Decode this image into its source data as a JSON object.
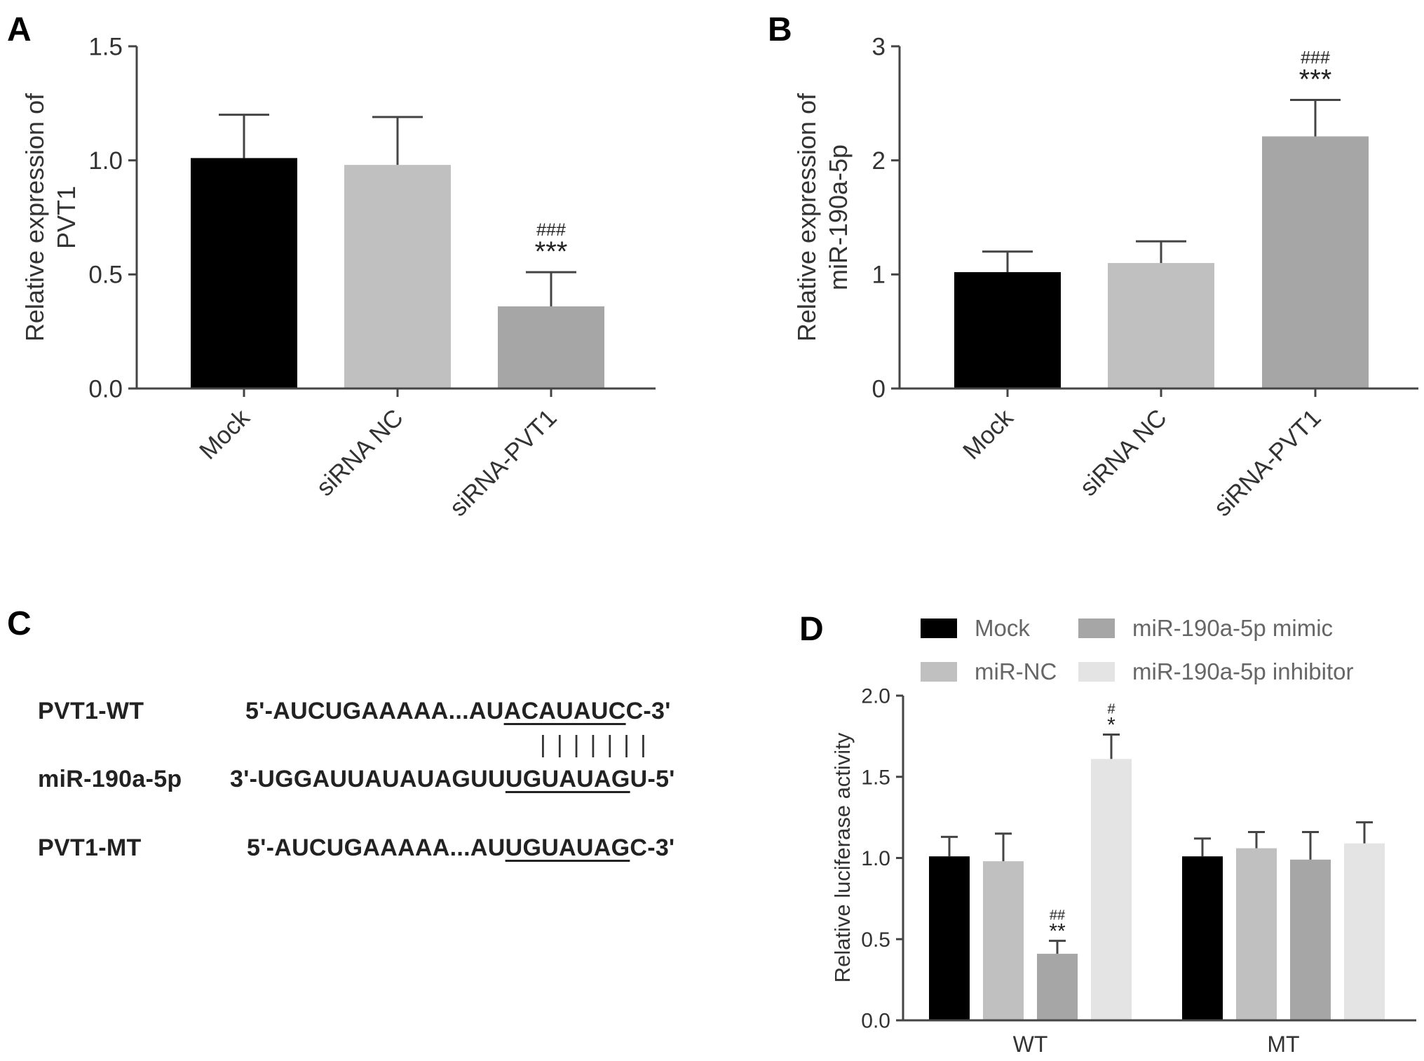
{
  "panel_labels": {
    "a": "A",
    "b": "B",
    "c": "C",
    "d": "D"
  },
  "colors": {
    "mock": "#000000",
    "sirna_nc": "#c0c0c0",
    "sirna_pvt1": "#a6a6a6",
    "mir_nc": "#c0c0c0",
    "mimic": "#a6a6a6",
    "inhibitor": "#e4e4e4"
  },
  "chart_data": [
    {
      "id": "A",
      "type": "bar",
      "ylabel": [
        "Relative expression of",
        "PVT1"
      ],
      "ylim": [
        0,
        1.5
      ],
      "yticks": [
        "0.0",
        "0.5",
        "1.0",
        "1.5"
      ],
      "ytick_values": [
        0,
        0.5,
        1.0,
        1.5
      ],
      "categories": [
        "Mock",
        "siRNA NC",
        "siRNA-PVT1"
      ],
      "values": [
        1.01,
        0.98,
        0.36
      ],
      "errors": [
        0.19,
        0.21,
        0.15
      ],
      "bar_colors": [
        "#000000",
        "#c0c0c0",
        "#a6a6a6"
      ],
      "annotations": [
        {
          "index": 2,
          "lines": [
            "###",
            "***"
          ]
        }
      ]
    },
    {
      "id": "B",
      "type": "bar",
      "ylabel": [
        "Relative expression of",
        "miR-190a-5p"
      ],
      "ylim": [
        0,
        3
      ],
      "yticks": [
        "0",
        "1",
        "2",
        "3"
      ],
      "ytick_values": [
        0,
        1,
        2,
        3
      ],
      "categories": [
        "Mock",
        "siRNA NC",
        "siRNA-PVT1"
      ],
      "values": [
        1.02,
        1.1,
        2.21
      ],
      "errors": [
        0.18,
        0.19,
        0.32
      ],
      "bar_colors": [
        "#000000",
        "#c0c0c0",
        "#a6a6a6"
      ],
      "annotations": [
        {
          "index": 2,
          "lines": [
            "###",
            "***"
          ]
        }
      ]
    },
    {
      "id": "D",
      "type": "bar",
      "ylabel": "Relative luciferase activity",
      "ylim": [
        0,
        2.0
      ],
      "yticks": [
        "0.0",
        "0.5",
        "1.0",
        "1.5",
        "2.0"
      ],
      "ytick_values": [
        0,
        0.5,
        1.0,
        1.5,
        2.0
      ],
      "categories": [
        "WT",
        "MT"
      ],
      "legend": [
        "Mock",
        "miR-NC",
        "miR-190a-5p mimic",
        "miR-190a-5p inhibitor"
      ],
      "series": [
        {
          "name": "Mock",
          "values": [
            1.01,
            1.01
          ],
          "errors": [
            0.12,
            0.11
          ]
        },
        {
          "name": "miR-NC",
          "values": [
            0.98,
            1.06
          ],
          "errors": [
            0.17,
            0.1
          ]
        },
        {
          "name": "miR-190a-5p mimic",
          "values": [
            0.41,
            0.99
          ],
          "errors": [
            0.08,
            0.17
          ]
        },
        {
          "name": "miR-190a-5p inhibitor",
          "values": [
            1.61,
            1.09
          ],
          "errors": [
            0.15,
            0.13
          ]
        }
      ],
      "series_colors": [
        "#000000",
        "#c0c0c0",
        "#a6a6a6",
        "#e4e4e4"
      ],
      "annotations": [
        {
          "category": 0,
          "series": 2,
          "lines": [
            "##",
            "**"
          ]
        },
        {
          "category": 0,
          "series": 3,
          "lines": [
            "#",
            "*"
          ]
        }
      ]
    }
  ],
  "sequences": {
    "wt_label": "PVT1-WT",
    "wt_prefix": "5'-AUCUGAAAAA...AU",
    "wt_match": "ACAUAUC",
    "wt_suffix": "C-3'",
    "pair_bars": "|||||||",
    "mir_label": "miR-190a-5p",
    "mir_prefix": "3'-UGGAUUAUAUAGUU",
    "mir_match": "UGUAUAG",
    "mir_suffix": "U-5'",
    "mt_label": "PVT1-MT",
    "mt_prefix": "5'-AUCUGAAAAA...AU",
    "mt_match": "UGUAUAG",
    "mt_suffix": "C-3'"
  }
}
